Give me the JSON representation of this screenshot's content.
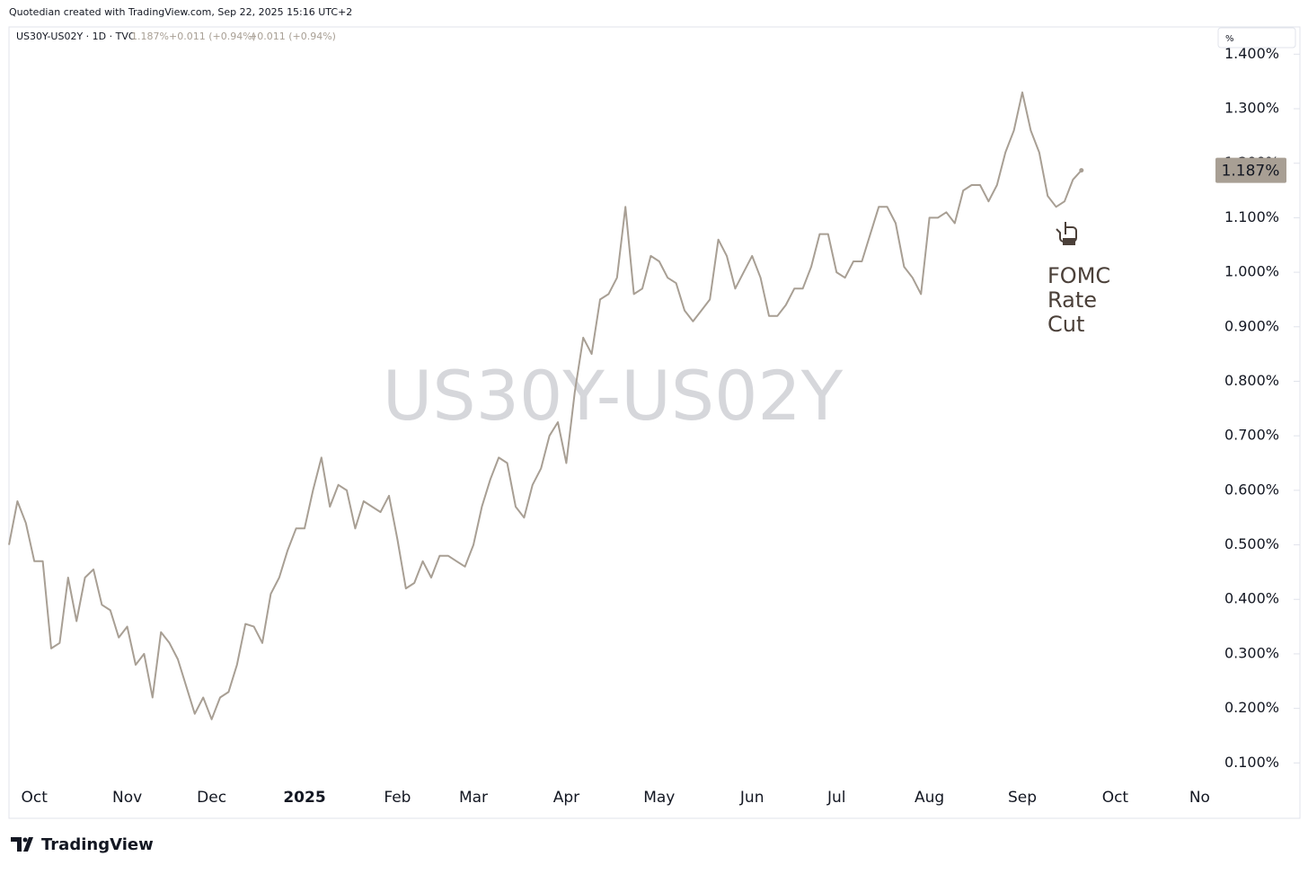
{
  "chart_data": {
    "type": "line",
    "header": "Quotedian created with TradingView.com, Sep 22, 2025 15:16 UTC+2",
    "symbol_info": "US30Y-US02Y · 1D · TVC",
    "legend_values": [
      "1.187%",
      "+0.011 (+0.94%)",
      "+0.011 (+0.94%)"
    ],
    "watermark": "US30Y-US02Y",
    "unit_button": "%",
    "price_tag": "1.187%",
    "annotation": [
      "FOMC",
      "Rate",
      "Cut"
    ],
    "brand": "TradingView",
    "color": "#a89f94",
    "categories": [
      null,
      null,
      null,
      "Oct",
      null,
      null,
      null,
      null,
      null,
      null,
      null,
      null,
      null,
      null,
      "Nov",
      null,
      null,
      null,
      null,
      null,
      null,
      null,
      null,
      null,
      "Dec",
      null,
      null,
      null,
      null,
      null,
      null,
      null,
      null,
      null,
      null,
      "2025",
      null,
      null,
      null,
      null,
      null,
      null,
      null,
      null,
      null,
      null,
      "Feb",
      null,
      null,
      null,
      null,
      null,
      null,
      null,
      null,
      "Mar",
      null,
      null,
      null,
      null,
      null,
      null,
      null,
      null,
      null,
      null,
      "Apr",
      null,
      null,
      null,
      null,
      null,
      null,
      null,
      null,
      null,
      null,
      "May",
      null,
      null,
      null,
      null,
      null,
      null,
      null,
      null,
      null,
      null,
      "Jun",
      null,
      null,
      null,
      null,
      null,
      null,
      null,
      null,
      null,
      "Jul",
      null,
      null,
      null,
      null,
      null,
      null,
      null,
      null,
      null,
      null,
      "Aug",
      null,
      null,
      null,
      null,
      null,
      null,
      null,
      null,
      null,
      null,
      "Sep",
      null,
      null,
      null,
      null,
      null,
      null,
      null,
      null,
      null,
      null,
      "Oct",
      null,
      null,
      null,
      null,
      null,
      null,
      null,
      null,
      null,
      "No"
    ],
    "values": [
      0.5,
      0.58,
      0.54,
      0.47,
      0.47,
      0.31,
      0.32,
      0.44,
      0.36,
      0.44,
      0.455,
      0.39,
      0.38,
      0.33,
      0.35,
      0.28,
      0.3,
      0.22,
      0.34,
      0.32,
      0.29,
      0.24,
      0.19,
      0.22,
      0.18,
      0.22,
      0.23,
      0.28,
      0.355,
      0.35,
      0.32,
      0.41,
      0.44,
      0.49,
      0.53,
      0.53,
      0.6,
      0.66,
      0.57,
      0.61,
      0.6,
      0.53,
      0.58,
      0.57,
      0.56,
      0.59,
      0.51,
      0.42,
      0.43,
      0.47,
      0.44,
      0.48,
      0.48,
      0.47,
      0.46,
      0.5,
      0.57,
      0.62,
      0.66,
      0.65,
      0.57,
      0.55,
      0.61,
      0.64,
      0.7,
      0.725,
      0.65,
      0.78,
      0.88,
      0.85,
      0.95,
      0.96,
      0.99,
      1.12,
      0.96,
      0.97,
      1.03,
      1.02,
      0.99,
      0.98,
      0.93,
      0.91,
      0.93,
      0.95,
      1.06,
      1.03,
      0.97,
      1.0,
      1.03,
      0.99,
      0.92,
      0.92,
      0.94,
      0.97,
      0.97,
      1.01,
      1.07,
      1.07,
      1.0,
      0.99,
      1.02,
      1.02,
      1.07,
      1.12,
      1.12,
      1.09,
      1.01,
      0.99,
      0.96,
      1.1,
      1.1,
      1.11,
      1.09,
      1.15,
      1.16,
      1.16,
      1.13,
      1.16,
      1.22,
      1.26,
      1.33,
      1.26,
      1.22,
      1.14,
      1.12,
      1.13,
      1.17,
      1.187,
      null,
      null,
      null,
      null,
      null,
      null,
      null,
      null,
      null,
      null,
      null,
      null,
      null,
      null
    ],
    "ylim": [
      0,
      1.45
    ],
    "yticks": [
      {
        "value": 0.1,
        "label": "0.100%"
      },
      {
        "value": 0.2,
        "label": "0.200%"
      },
      {
        "value": 0.3,
        "label": "0.300%"
      },
      {
        "value": 0.4,
        "label": "0.400%"
      },
      {
        "value": 0.5,
        "label": "0.500%"
      },
      {
        "value": 0.6,
        "label": "0.600%"
      },
      {
        "value": 0.7,
        "label": "0.700%"
      },
      {
        "value": 0.8,
        "label": "0.800%"
      },
      {
        "value": 0.9,
        "label": "0.900%"
      },
      {
        "value": 1.0,
        "label": "1.000%"
      },
      {
        "value": 1.1,
        "label": "1.100%"
      },
      {
        "value": 1.2,
        "label": "1.200%"
      },
      {
        "value": 1.3,
        "label": "1.300%"
      },
      {
        "value": 1.4,
        "label": "1.400%"
      }
    ],
    "grid": false
  }
}
